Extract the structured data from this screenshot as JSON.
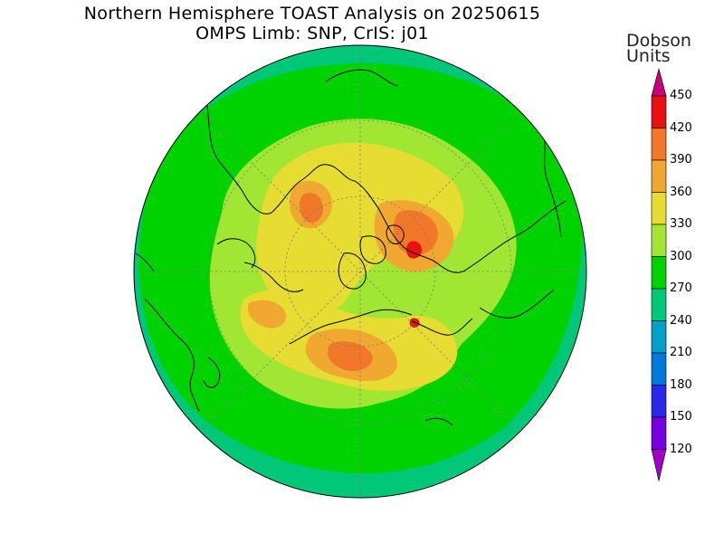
{
  "title": {
    "line1": "Northern Hemisphere TOAST Analysis on 20250615",
    "line2": "OMPS Limb: SNP, CrIS: j01"
  },
  "colorbar": {
    "units_line1": "Dobson",
    "units_line2": "Units",
    "levels": [
      {
        "label": "450",
        "color": "#c8007c"
      },
      {
        "label": "420",
        "color": "#e81010"
      },
      {
        "label": "390",
        "color": "#f07828"
      },
      {
        "label": "360",
        "color": "#f0a830"
      },
      {
        "label": "330",
        "color": "#e6dc32"
      },
      {
        "label": "300",
        "color": "#a0e632"
      },
      {
        "label": "270",
        "color": "#00d200"
      },
      {
        "label": "240",
        "color": "#00c878"
      },
      {
        "label": "210",
        "color": "#00a0c8"
      },
      {
        "label": "180",
        "color": "#0078dc"
      },
      {
        "label": "150",
        "color": "#2828e6"
      },
      {
        "label": "120",
        "color": "#7800dc"
      }
    ],
    "bottom_color": "#a000c8",
    "top_color": "#c8007c"
  },
  "map": {
    "projection": "north-polar-stereographic",
    "field_colors": {
      "outer": "#00c878",
      "band270": "#00d200",
      "band300": "#a0e632",
      "band330": "#e6dc32",
      "band360": "#f0a830",
      "band390": "#f07828",
      "band420": "#e81010"
    }
  }
}
